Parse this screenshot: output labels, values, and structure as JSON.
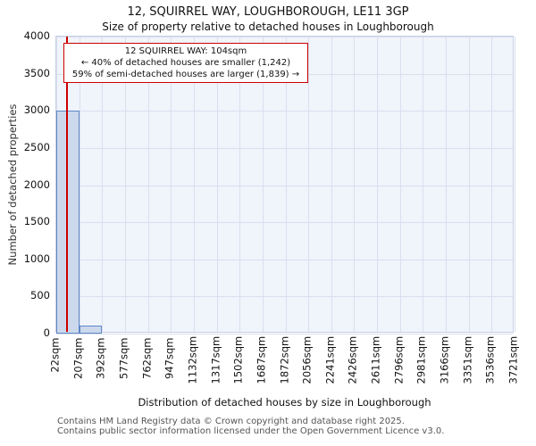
{
  "annotation": {
    "line1": "12 SQUIRREL WAY: 104sqm",
    "line2": "← 40% of detached houses are smaller (1,242)",
    "line3": "59% of semi-detached houses are larger (1,839) →"
  },
  "chart_data": {
    "type": "bar",
    "title": "12, SQUIRREL WAY, LOUGHBOROUGH, LE11 3GP",
    "subtitle": "Size of property relative to detached houses in Loughborough",
    "xlabel": "Distribution of detached houses by size in Loughborough",
    "ylabel": "Number of detached properties",
    "bin_edges_labels": [
      "22sqm",
      "207sqm",
      "392sqm",
      "577sqm",
      "762sqm",
      "947sqm",
      "1132sqm",
      "1317sqm",
      "1502sqm",
      "1687sqm",
      "1872sqm",
      "2056sqm",
      "2241sqm",
      "2426sqm",
      "2611sqm",
      "2796sqm",
      "2981sqm",
      "3166sqm",
      "3351sqm",
      "3536sqm",
      "3721sqm"
    ],
    "values": [
      3000,
      110,
      0,
      0,
      0,
      0,
      0,
      0,
      0,
      0,
      0,
      0,
      0,
      0,
      0,
      0,
      0,
      0,
      0,
      0
    ],
    "ylim": [
      0,
      4000
    ],
    "ytick_step": 500,
    "marker_value_sqm": 104,
    "x_min_sqm": 22,
    "x_max_sqm": 3721,
    "grid": true,
    "legend": "none",
    "colors": {
      "bar_fill": "#ccd9ed",
      "bar_border": "#5f87c5",
      "marker_line": "#cc0000",
      "plot_bg": "#f0f4fb",
      "grid": "#dadfef",
      "annotation_border": "#cc0000"
    }
  },
  "footer": {
    "line1": "Contains HM Land Registry data © Crown copyright and database right 2025.",
    "line2": "Contains public sector information licensed under the Open Government Licence v3.0."
  }
}
